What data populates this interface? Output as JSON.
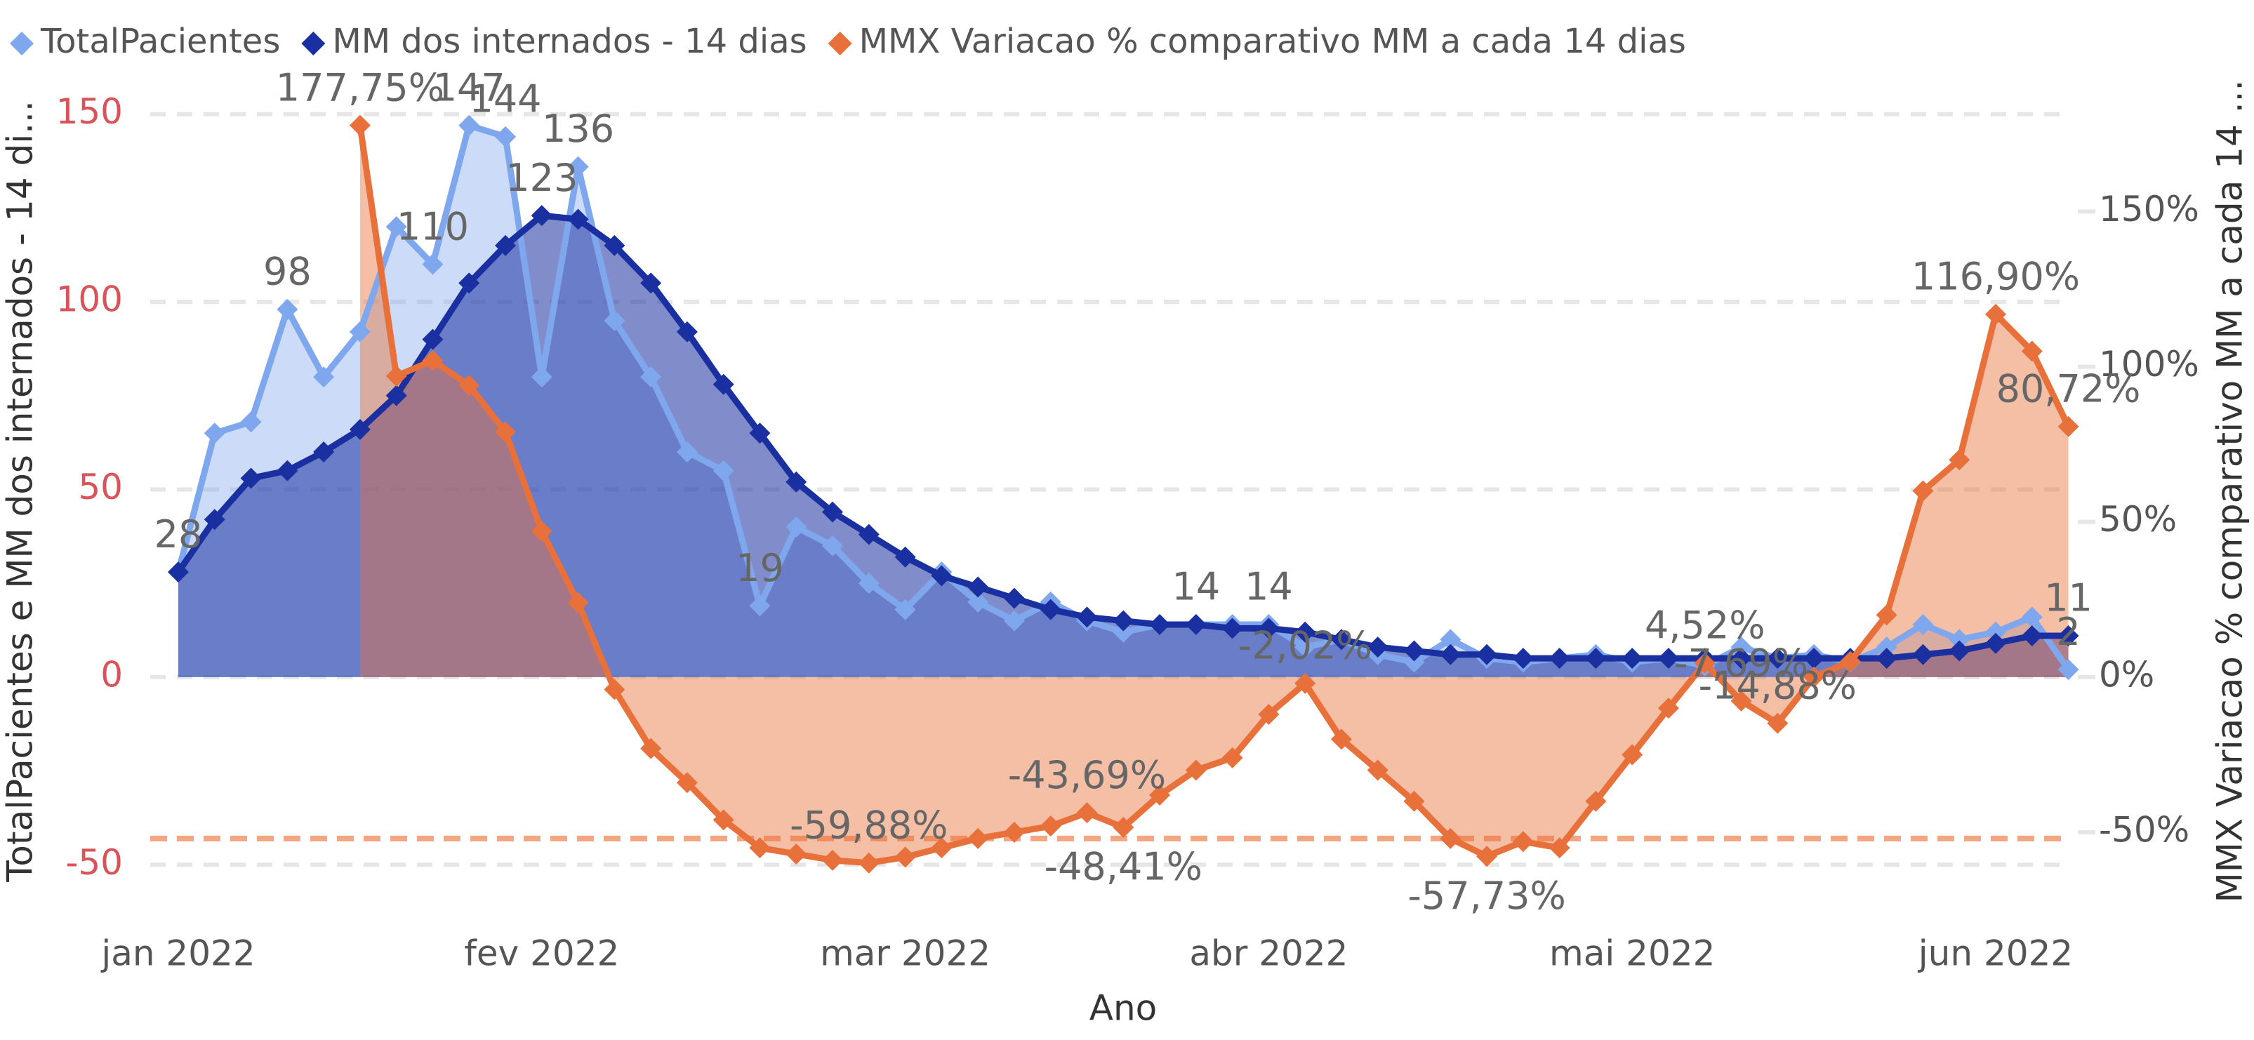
{
  "chart_data": {
    "type": "combo",
    "x_label": "Ano",
    "y_label": "TotalPacientes e MM dos internados - 14 di...",
    "y2_label": "MMX Variacao % comparativo MM a cada 14 ...",
    "categories": [
      "jan 2022",
      null,
      null,
      null,
      null,
      null,
      null,
      null,
      null,
      null,
      "fev 2022",
      null,
      null,
      null,
      null,
      null,
      null,
      null,
      null,
      null,
      "mar 2022",
      null,
      null,
      null,
      null,
      null,
      null,
      null,
      null,
      null,
      "abr 2022",
      null,
      null,
      null,
      null,
      null,
      null,
      null,
      null,
      null,
      "mai 2022",
      null,
      null,
      null,
      null,
      null,
      null,
      null,
      null,
      null,
      "jun 2022",
      null,
      null
    ],
    "ylim": [
      -55,
      155
    ],
    "yticks": [
      -50,
      0,
      50,
      100,
      150
    ],
    "y_tick_color": "#d9545a",
    "y2lim": [
      -66.5,
      187.4
    ],
    "y2ticks": [
      {
        "value": -50,
        "label": "-50%"
      },
      {
        "value": 0,
        "label": "0%"
      },
      {
        "value": 50,
        "label": "50%"
      },
      {
        "value": 100,
        "label": "100%"
      },
      {
        "value": 150,
        "label": "150%"
      }
    ],
    "grid": true,
    "legend": "top-left",
    "ref_line": {
      "value": -52,
      "axis": "y2",
      "color": "#f4a582"
    },
    "series": [
      {
        "name": "TotalPacientes",
        "color": "#7fa7ee",
        "axis": "y",
        "values": [
          28,
          65,
          68,
          98,
          80,
          92,
          120,
          110,
          147,
          144,
          80,
          136,
          95,
          80,
          60,
          55,
          19,
          40,
          35,
          25,
          18,
          28,
          20,
          15,
          20,
          15,
          12,
          14,
          14,
          14,
          14,
          8,
          10,
          6,
          4,
          10,
          5,
          4,
          5,
          6,
          4,
          5,
          3,
          8,
          5,
          6,
          4,
          8,
          14,
          10,
          12,
          16,
          2
        ],
        "value_labels": [
          "28",
          null,
          null,
          "98",
          null,
          null,
          null,
          "110",
          "147",
          "144",
          null,
          "136",
          null,
          null,
          null,
          null,
          "19",
          null,
          null,
          null,
          null,
          null,
          null,
          null,
          null,
          null,
          null,
          null,
          "14",
          null,
          "14",
          null,
          null,
          null,
          null,
          null,
          null,
          null,
          null,
          null,
          null,
          null,
          null,
          null,
          null,
          null,
          null,
          null,
          null,
          null,
          null,
          null,
          "2"
        ]
      },
      {
        "name": "MM dos internados - 14 dias",
        "color": "#1a2fa0",
        "axis": "y",
        "values": [
          28,
          42,
          53,
          55,
          60,
          66,
          75,
          90,
          105,
          115,
          123,
          122,
          115,
          105,
          92,
          78,
          65,
          52,
          44,
          38,
          32,
          27,
          24,
          21,
          18,
          16,
          15,
          14,
          14,
          13,
          13,
          12,
          10,
          8,
          7,
          6,
          6,
          5,
          5,
          5,
          5,
          5,
          5,
          5,
          5,
          5,
          5,
          5,
          6,
          7,
          9,
          11,
          11
        ],
        "value_labels": [
          null,
          null,
          null,
          null,
          null,
          null,
          null,
          null,
          null,
          null,
          "123",
          null,
          null,
          null,
          null,
          null,
          null,
          null,
          null,
          null,
          null,
          null,
          null,
          null,
          null,
          null,
          null,
          null,
          null,
          null,
          null,
          null,
          null,
          null,
          null,
          null,
          null,
          null,
          null,
          null,
          null,
          null,
          null,
          null,
          null,
          null,
          null,
          null,
          null,
          null,
          null,
          null,
          "11"
        ]
      },
      {
        "name": "MMX Variacao % comparativo MM a cada 14 dias",
        "color": "#e8703a",
        "axis": "y2",
        "values": [
          null,
          null,
          null,
          null,
          null,
          177.75,
          97,
          102,
          94,
          79,
          47,
          24,
          -4,
          -23,
          -34,
          -46,
          -55,
          -57,
          -59,
          -59.88,
          -58,
          -55,
          -52,
          -50,
          -48,
          -43.69,
          -48.41,
          -38,
          -30,
          -26,
          -12,
          -2.02,
          -20,
          -30,
          -40,
          -52,
          -57.73,
          -53,
          -55,
          -40,
          -25,
          -10,
          4.52,
          -7.69,
          -14.88,
          0,
          5,
          20,
          60,
          70,
          116.9,
          105,
          80.72
        ],
        "value_labels": [
          null,
          null,
          null,
          null,
          null,
          "177,75%",
          null,
          null,
          null,
          null,
          null,
          null,
          null,
          null,
          null,
          null,
          null,
          null,
          null,
          "-59,88%",
          null,
          null,
          null,
          null,
          null,
          "-43,69%",
          "-48,41%",
          null,
          null,
          null,
          null,
          "-2,02%",
          null,
          null,
          null,
          null,
          "-57,73%",
          null,
          null,
          null,
          null,
          null,
          "4,52%",
          "-7,69%",
          "-14,88%",
          null,
          null,
          null,
          null,
          null,
          "116,90%",
          null,
          "80,72%"
        ]
      }
    ]
  }
}
